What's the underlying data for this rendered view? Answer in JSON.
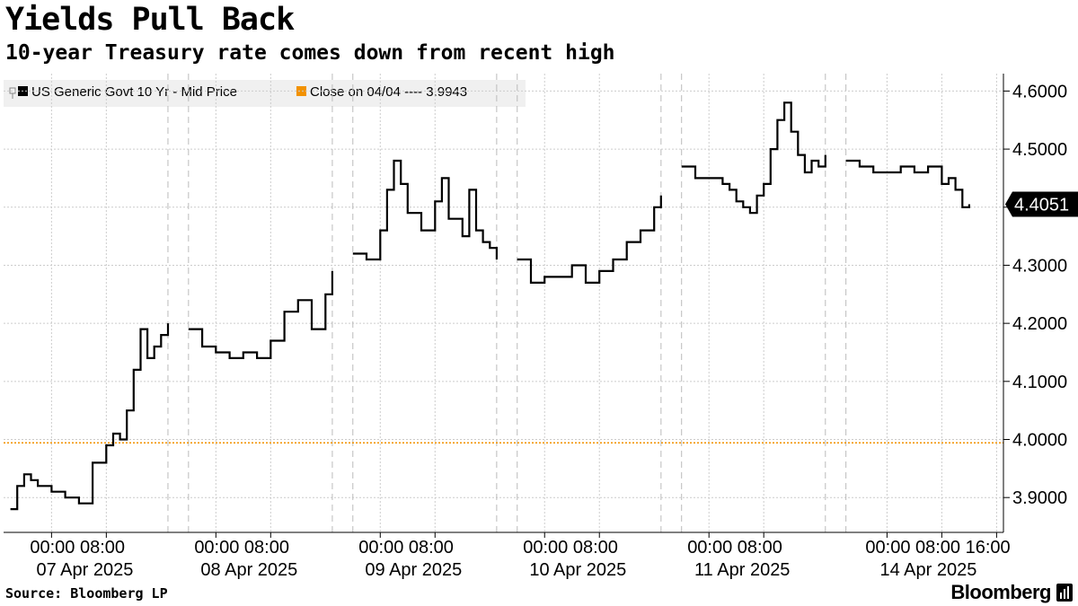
{
  "header": {
    "title": "Yields Pull Back",
    "subtitle": "10-year Treasury rate comes down from recent high"
  },
  "footer": {
    "source": "Source: Bloomberg LP",
    "brand": "Bloomberg"
  },
  "icons": [
    "bloomberg-logo-icon"
  ],
  "chart_data": {
    "type": "line",
    "title": "Yields Pull Back",
    "subtitle": "10-year Treasury rate comes down from recent high",
    "xlabel": "",
    "ylabel": "",
    "ylim": [
      3.84,
      4.63
    ],
    "y_ticks": [
      "3.9000",
      "4.0000",
      "4.1000",
      "4.2000",
      "4.3000",
      "4.4000",
      "4.5000",
      "4.6000"
    ],
    "grid": true,
    "legend_position": "top-left",
    "legend": [
      {
        "label": "US Generic Govt 10 Yr - Mid Price",
        "color": "#000000"
      },
      {
        "label": "Close on 04/04 ---- 3.9943",
        "color": "#f29200"
      }
    ],
    "reference_line": {
      "label": "Close on 04/04",
      "value": 3.9943,
      "color": "#f29200"
    },
    "last_value_label": "4.4051",
    "x_time_labels": [
      {
        "day": "07 Apr 2025",
        "times": [
          "00:00",
          "08:00"
        ]
      },
      {
        "day": "08 Apr 2025",
        "times": [
          "00:00",
          "08:00"
        ]
      },
      {
        "day": "09 Apr 2025",
        "times": [
          "00:00",
          "08:00"
        ]
      },
      {
        "day": "10 Apr 2025",
        "times": [
          "00:00",
          "08:00"
        ]
      },
      {
        "day": "11 Apr 2025",
        "times": [
          "00:00",
          "08:00"
        ]
      },
      {
        "day": "14 Apr 2025",
        "times": [
          "00:00",
          "08:00",
          "16:00"
        ]
      }
    ],
    "series": [
      {
        "name": "US Generic Govt 10 Yr - Mid Price",
        "color": "#000000",
        "segments": [
          {
            "x": [
              "2025-04-06 18:00",
              "2025-04-06 19:00",
              "2025-04-06 20:00",
              "2025-04-06 21:00",
              "2025-04-06 22:00",
              "2025-04-07 00:00",
              "2025-04-07 02:00",
              "2025-04-07 04:00",
              "2025-04-07 06:00",
              "2025-04-07 08:00",
              "2025-04-07 09:00",
              "2025-04-07 10:00",
              "2025-04-07 11:00",
              "2025-04-07 12:00",
              "2025-04-07 13:00",
              "2025-04-07 14:00",
              "2025-04-07 15:00",
              "2025-04-07 16:00",
              "2025-04-07 17:00"
            ],
            "y": [
              3.88,
              3.92,
              3.94,
              3.93,
              3.92,
              3.91,
              3.9,
              3.89,
              3.96,
              3.99,
              4.01,
              4.0,
              4.05,
              4.12,
              4.19,
              4.14,
              4.16,
              4.18,
              4.2
            ]
          },
          {
            "x": [
              "2025-04-07 20:00",
              "2025-04-07 22:00",
              "2025-04-08 00:00",
              "2025-04-08 02:00",
              "2025-04-08 04:00",
              "2025-04-08 06:00",
              "2025-04-08 08:00",
              "2025-04-08 10:00",
              "2025-04-08 12:00",
              "2025-04-08 14:00",
              "2025-04-08 16:00",
              "2025-04-08 17:00"
            ],
            "y": [
              4.19,
              4.16,
              4.15,
              4.14,
              4.15,
              4.14,
              4.17,
              4.22,
              4.24,
              4.19,
              4.25,
              4.29
            ]
          },
          {
            "x": [
              "2025-04-08 20:00",
              "2025-04-08 22:00",
              "2025-04-09 00:00",
              "2025-04-09 01:00",
              "2025-04-09 02:00",
              "2025-04-09 03:00",
              "2025-04-09 04:00",
              "2025-04-09 06:00",
              "2025-04-09 08:00",
              "2025-04-09 09:00",
              "2025-04-09 10:00",
              "2025-04-09 12:00",
              "2025-04-09 13:00",
              "2025-04-09 14:00",
              "2025-04-09 15:00",
              "2025-04-09 16:00",
              "2025-04-09 17:00"
            ],
            "y": [
              4.32,
              4.31,
              4.36,
              4.43,
              4.48,
              4.44,
              4.39,
              4.36,
              4.41,
              4.45,
              4.38,
              4.35,
              4.43,
              4.36,
              4.34,
              4.33,
              4.31
            ]
          },
          {
            "x": [
              "2025-04-09 20:00",
              "2025-04-09 22:00",
              "2025-04-10 00:00",
              "2025-04-10 02:00",
              "2025-04-10 04:00",
              "2025-04-10 06:00",
              "2025-04-10 08:00",
              "2025-04-10 10:00",
              "2025-04-10 12:00",
              "2025-04-10 14:00",
              "2025-04-10 16:00",
              "2025-04-10 17:00"
            ],
            "y": [
              4.31,
              4.27,
              4.28,
              4.28,
              4.3,
              4.27,
              4.29,
              4.31,
              4.34,
              4.36,
              4.4,
              4.42
            ]
          },
          {
            "x": [
              "2025-04-10 20:00",
              "2025-04-10 22:00",
              "2025-04-11 00:00",
              "2025-04-11 02:00",
              "2025-04-11 03:00",
              "2025-04-11 04:00",
              "2025-04-11 05:00",
              "2025-04-11 06:00",
              "2025-04-11 07:00",
              "2025-04-11 08:00",
              "2025-04-11 09:00",
              "2025-04-11 10:00",
              "2025-04-11 11:00",
              "2025-04-11 12:00",
              "2025-04-11 13:00",
              "2025-04-11 14:00",
              "2025-04-11 15:00",
              "2025-04-11 16:00",
              "2025-04-11 17:00"
            ],
            "y": [
              4.47,
              4.45,
              4.45,
              4.44,
              4.43,
              4.41,
              4.4,
              4.39,
              4.42,
              4.44,
              4.5,
              4.55,
              4.58,
              4.53,
              4.49,
              4.46,
              4.48,
              4.47,
              4.49
            ]
          },
          {
            "x": [
              "2025-04-13 18:00",
              "2025-04-13 20:00",
              "2025-04-13 22:00",
              "2025-04-14 00:00",
              "2025-04-14 02:00",
              "2025-04-14 04:00",
              "2025-04-14 06:00",
              "2025-04-14 08:00",
              "2025-04-14 09:00",
              "2025-04-14 10:00",
              "2025-04-14 11:00",
              "2025-04-14 12:00"
            ],
            "y": [
              4.48,
              4.47,
              4.46,
              4.46,
              4.47,
              4.46,
              4.47,
              4.44,
              4.45,
              4.43,
              4.4,
              4.405
            ]
          }
        ]
      }
    ]
  }
}
